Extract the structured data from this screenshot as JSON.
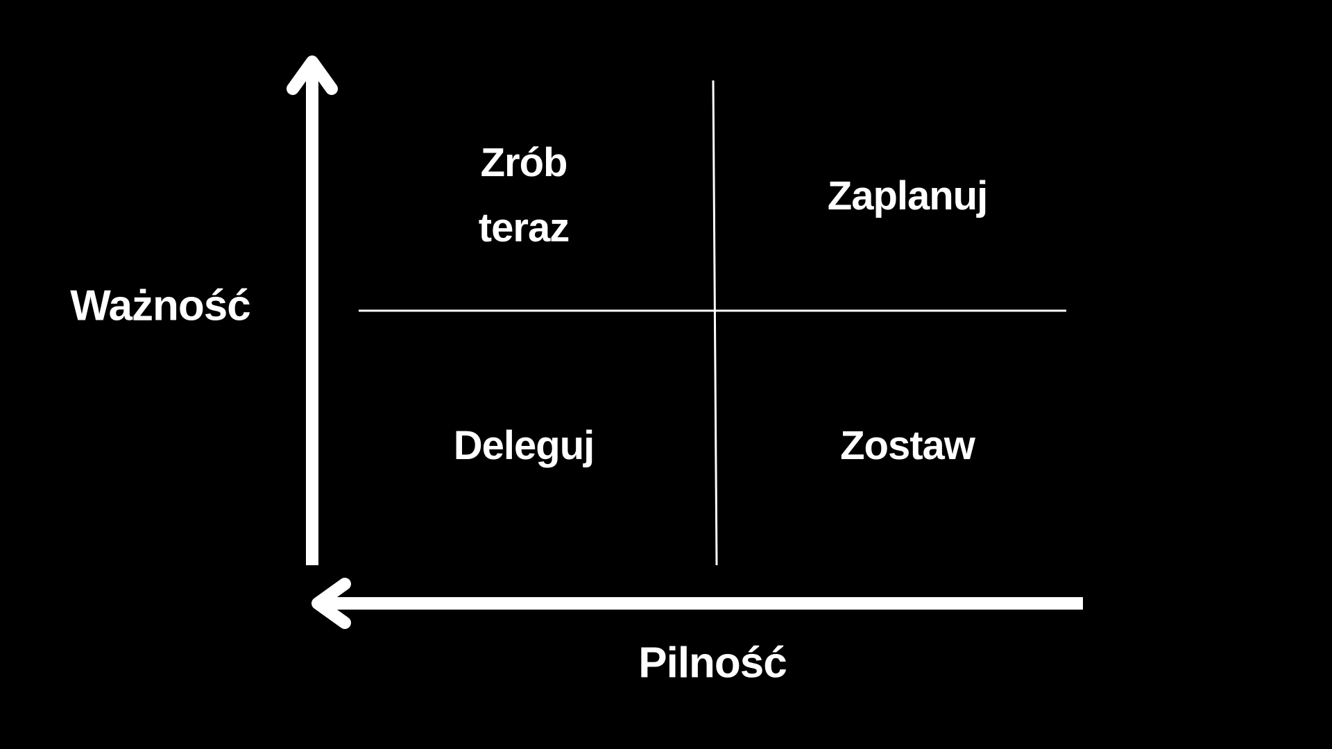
{
  "axes": {
    "vertical_label": "Ważność",
    "horizontal_label": "Pilność"
  },
  "quadrants": {
    "top_left": {
      "line1": "Zrób",
      "line2": "teraz"
    },
    "top_right": {
      "label": "Zaplanuj"
    },
    "bottom_left": {
      "label": "Deleguj"
    },
    "bottom_right": {
      "label": "Zostaw"
    }
  },
  "colors": {
    "background": "#000000",
    "foreground": "#ffffff"
  }
}
